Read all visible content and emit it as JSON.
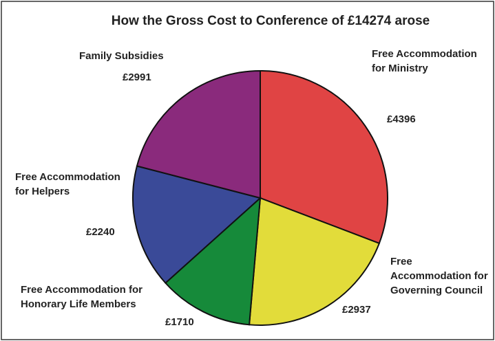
{
  "chart_data": {
    "type": "pie",
    "title": "How the Gross Cost to Conference of £14274 arose",
    "categories": [
      "Free Accommodation for Ministry",
      "Free Accommodation for Governing Council",
      "Free Accommodation for Honorary Life Members",
      "Free Accommodation for Helpers",
      "Family Subsidies"
    ],
    "values": [
      4396,
      2937,
      1710,
      2240,
      2991
    ],
    "value_labels": [
      "£4396",
      "£2937",
      "£1710",
      "£2240",
      "£2991"
    ],
    "colors": [
      "#e04444",
      "#e2dc3a",
      "#168a3a",
      "#3a4a98",
      "#8a2a7c"
    ]
  }
}
